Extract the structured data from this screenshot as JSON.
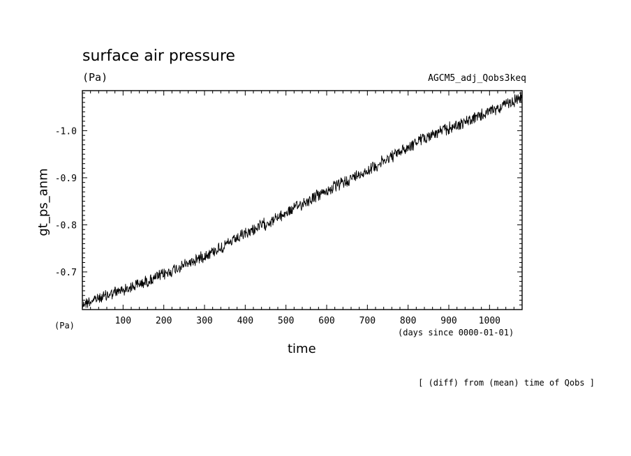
{
  "chart_data": {
    "type": "line",
    "title": "surface air pressure",
    "unit_label": "(Pa)",
    "source_label": "AGCM5_adj_Qobs3keq",
    "xlabel": "time",
    "xlabel_units": "(days since 0000-01-01)",
    "ylabel": "gt_ps_anm",
    "y_unit_label": "(Pa)",
    "note": "[ (diff) from (mean) time of Qobs ]",
    "xlim": [
      0,
      1080
    ],
    "ylim": [
      -0.62,
      -1.085
    ],
    "x_ticks": [
      100,
      200,
      300,
      400,
      500,
      600,
      700,
      800,
      900,
      1000
    ],
    "x_tick_labels": [
      "100",
      "200",
      "300",
      "400",
      "500",
      "600",
      "700",
      "800",
      "900",
      "1000"
    ],
    "y_ticks": [
      -0.7,
      -0.8,
      -0.9,
      -1.0
    ],
    "y_tick_labels": [
      "-0.7",
      "-0.8",
      "-0.9",
      "-1.0"
    ],
    "grid": false,
    "series": [
      {
        "x": [
          0,
          60,
          120,
          180,
          240,
          300,
          360,
          420,
          480,
          540,
          600,
          660,
          720,
          780,
          840,
          900,
          960,
          1020,
          1080
        ],
        "values": [
          -0.632,
          -0.65,
          -0.668,
          -0.687,
          -0.71,
          -0.735,
          -0.76,
          -0.79,
          -0.815,
          -0.845,
          -0.872,
          -0.898,
          -0.925,
          -0.955,
          -0.985,
          -1.005,
          -1.025,
          -1.048,
          -1.07
        ]
      }
    ]
  }
}
